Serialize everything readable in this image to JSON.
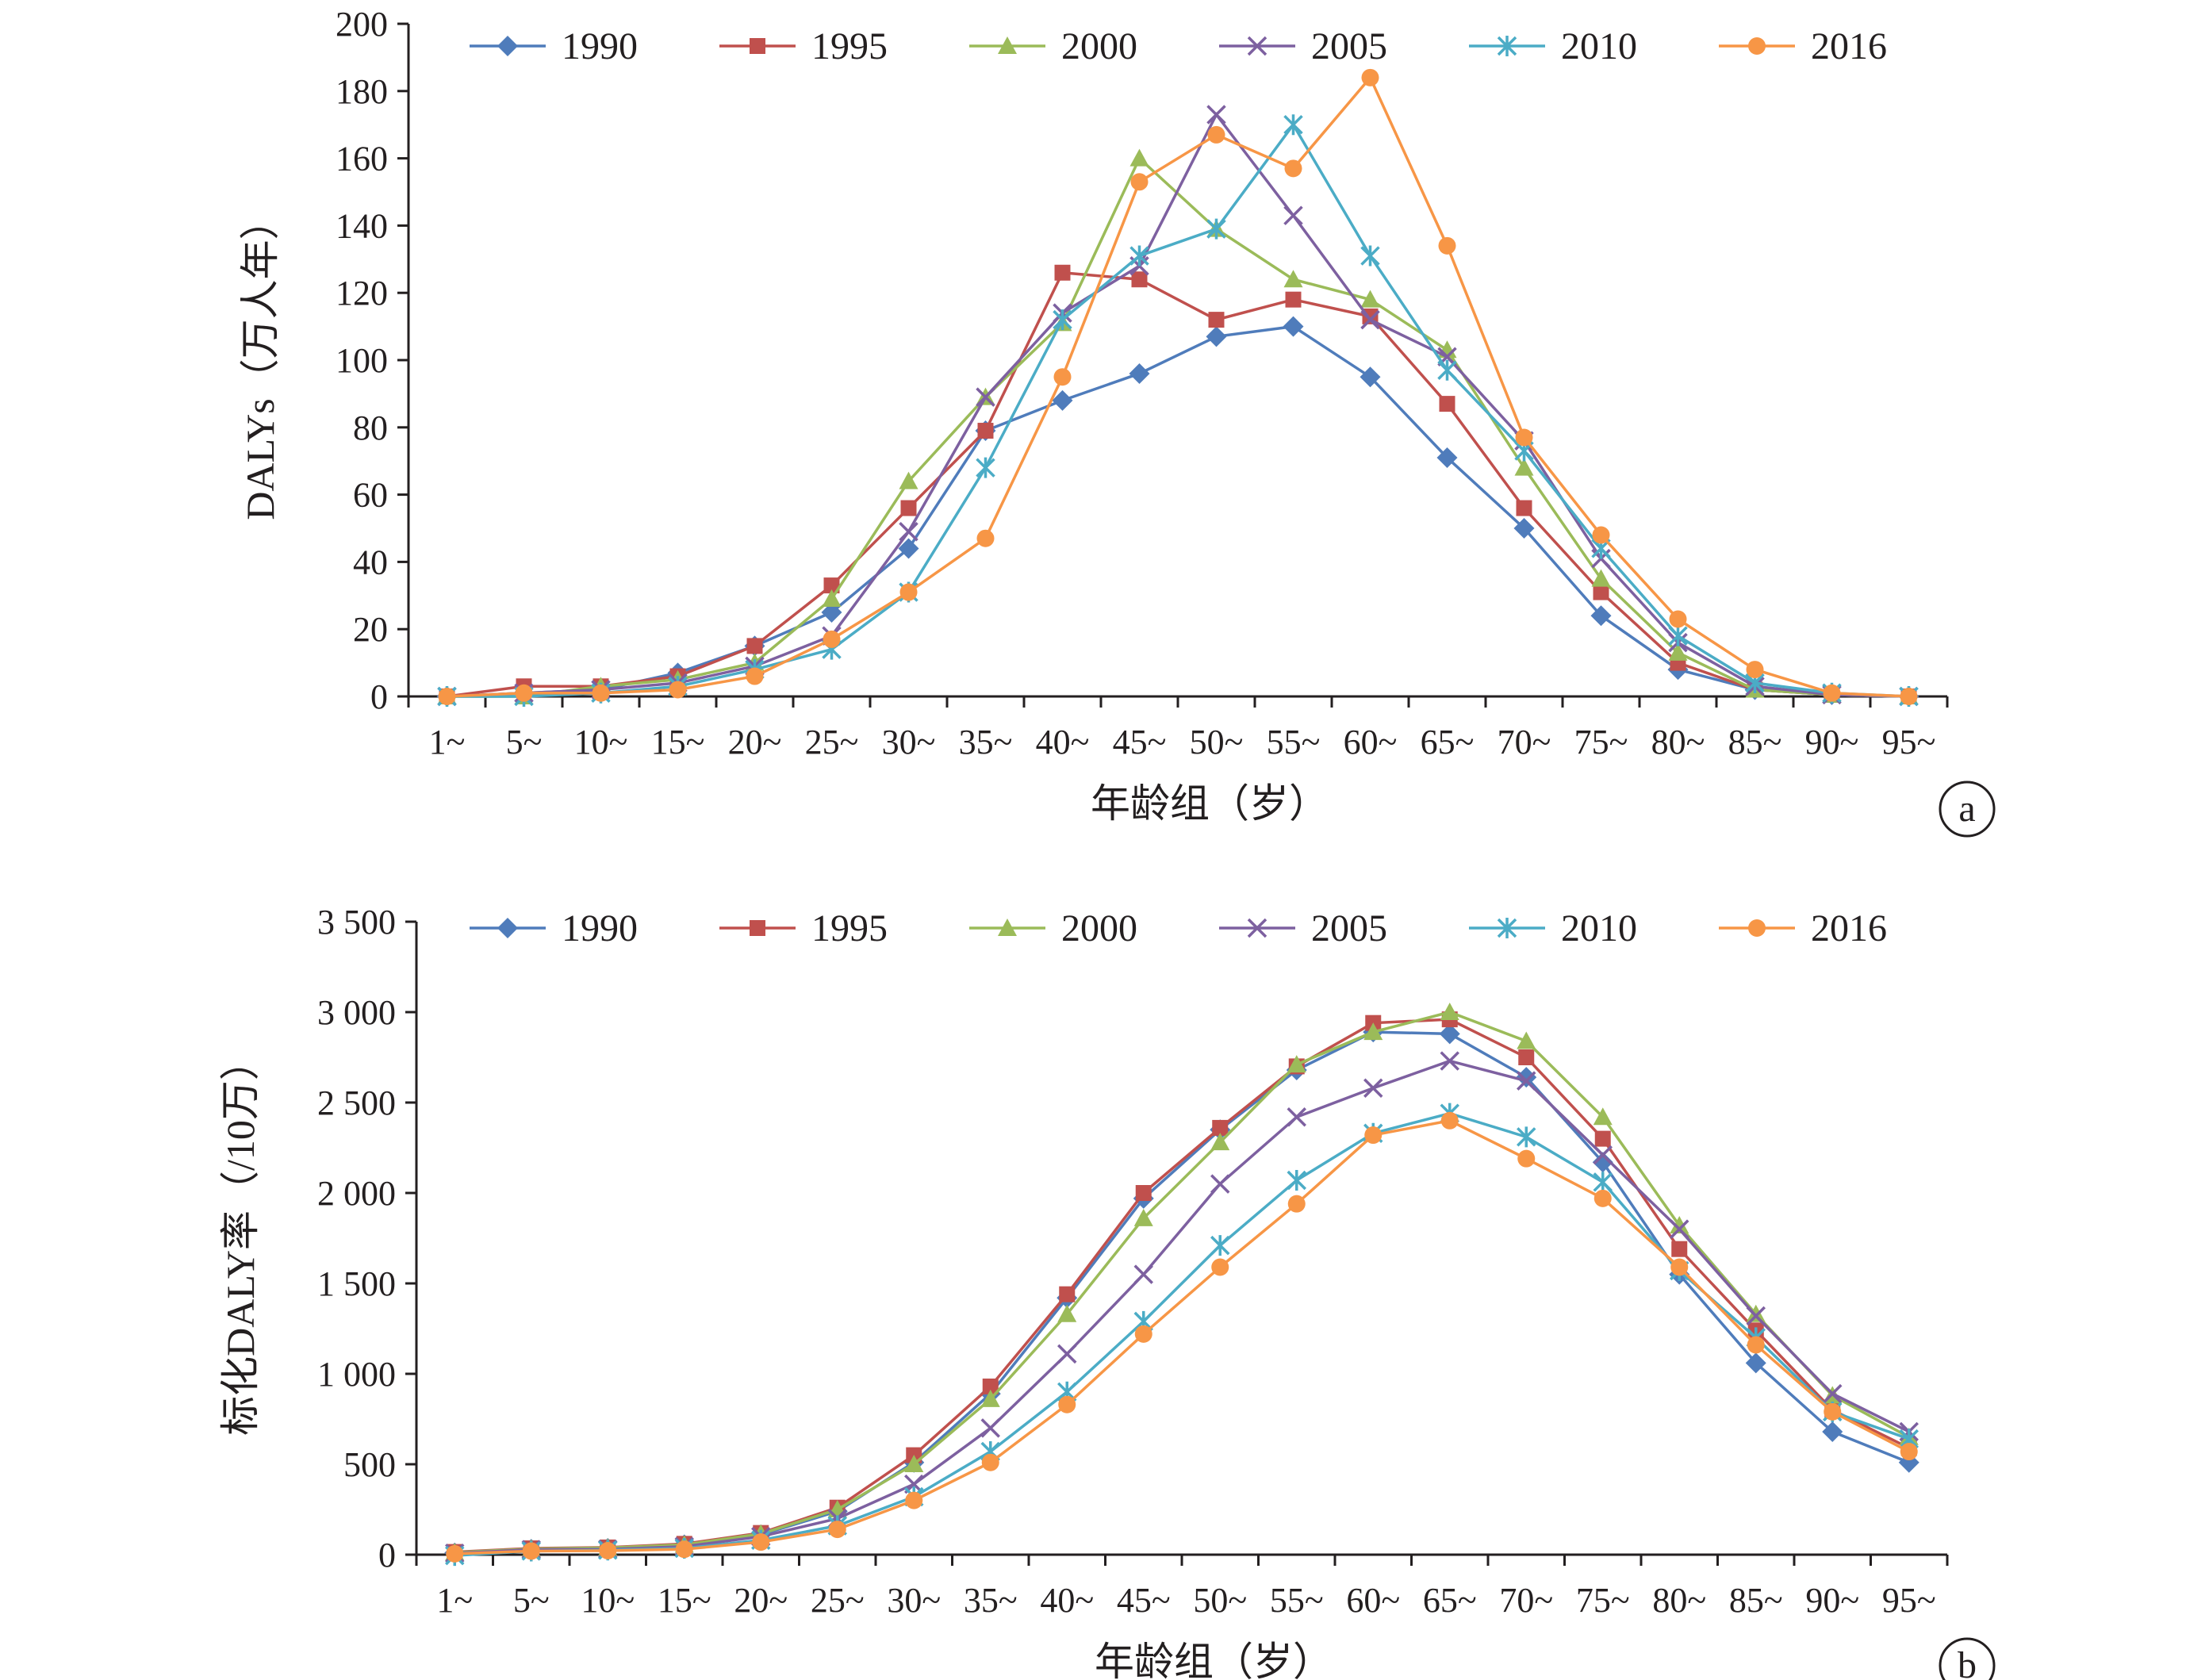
{
  "chart_data": [
    {
      "panel": "a",
      "type": "line",
      "title": "",
      "xlabel": "年龄组（岁）",
      "ylabel": "DALYs（万人年）",
      "ylim": [
        0,
        200
      ],
      "yticks": [
        0,
        20,
        40,
        60,
        80,
        100,
        120,
        140,
        160,
        180,
        200
      ],
      "ytick_labels": [
        "0",
        "20",
        "40",
        "60",
        "80",
        "100",
        "120",
        "140",
        "160",
        "180",
        "200"
      ],
      "categories": [
        "1~",
        "5~",
        "10~",
        "15~",
        "20~",
        "25~",
        "30~",
        "35~",
        "40~",
        "45~",
        "50~",
        "55~",
        "60~",
        "65~",
        "70~",
        "75~",
        "80~",
        "85~",
        "90~",
        "95~"
      ],
      "legend_position": "top",
      "grid": false,
      "series": [
        {
          "name": "1990",
          "marker": "diamond",
          "color": "#4f7cbb",
          "values": [
            0,
            1,
            2,
            7,
            15,
            25,
            44,
            79,
            88,
            96,
            107,
            110,
            95,
            71,
            50,
            24,
            8,
            2,
            0.5,
            0
          ]
        },
        {
          "name": "1995",
          "marker": "square",
          "color": "#c0504d",
          "values": [
            0,
            3,
            3,
            6,
            15,
            33,
            56,
            79,
            126,
            124,
            112,
            118,
            113,
            87,
            56,
            31,
            10,
            2,
            0.5,
            0
          ]
        },
        {
          "name": "2000",
          "marker": "triangle",
          "color": "#9bbb59",
          "values": [
            0,
            0,
            3,
            5,
            10,
            29,
            64,
            89,
            111,
            160,
            139,
            124,
            118,
            103,
            68,
            35,
            13,
            2,
            0.5,
            0
          ]
        },
        {
          "name": "2005",
          "marker": "x",
          "color": "#7d60a0",
          "values": [
            0,
            1,
            2,
            4,
            9,
            18,
            49,
            89,
            114,
            128,
            173,
            143,
            112,
            101,
            76,
            41,
            16,
            3,
            0.5,
            0
          ]
        },
        {
          "name": "2010",
          "marker": "star",
          "color": "#4bacc6",
          "values": [
            0,
            0,
            1,
            3,
            8,
            14,
            31,
            68,
            112,
            131,
            139,
            170,
            131,
            97,
            73,
            44,
            18,
            4,
            1,
            0
          ]
        },
        {
          "name": "2016",
          "marker": "circle",
          "color": "#f79646",
          "values": [
            0,
            1,
            1,
            2,
            6,
            17,
            31,
            47,
            95,
            153,
            167,
            157,
            184,
            134,
            77,
            48,
            23,
            8,
            1,
            0
          ]
        }
      ]
    },
    {
      "panel": "b",
      "type": "line",
      "title": "",
      "xlabel": "年龄组（岁）",
      "ylabel": "标化DALY率（/10万）",
      "ylim": [
        0,
        3500
      ],
      "yticks": [
        0,
        500,
        1000,
        1500,
        2000,
        2500,
        3000,
        3500
      ],
      "ytick_labels": [
        "0",
        "500",
        "1 000",
        "1 500",
        "2 000",
        "2 500",
        "3 000",
        "3 500"
      ],
      "categories": [
        "1~",
        "5~",
        "10~",
        "15~",
        "20~",
        "25~",
        "30~",
        "35~",
        "40~",
        "45~",
        "50~",
        "55~",
        "60~",
        "65~",
        "70~",
        "75~",
        "80~",
        "85~",
        "90~",
        "95~"
      ],
      "legend_position": "top",
      "grid": false,
      "series": [
        {
          "name": "1990",
          "marker": "diamond",
          "color": "#4f7cbb",
          "values": [
            10,
            30,
            35,
            55,
            110,
            240,
            510,
            890,
            1420,
            1970,
            2350,
            2680,
            2890,
            2880,
            2640,
            2170,
            1550,
            1060,
            680,
            510
          ]
        },
        {
          "name": "1995",
          "marker": "square",
          "color": "#c0504d",
          "values": [
            15,
            35,
            40,
            60,
            120,
            260,
            550,
            930,
            1440,
            2000,
            2360,
            2700,
            2940,
            2960,
            2750,
            2300,
            1690,
            1240,
            800,
            590
          ]
        },
        {
          "name": "2000",
          "marker": "triangle",
          "color": "#9bbb59",
          "values": [
            12,
            32,
            38,
            55,
            115,
            250,
            500,
            860,
            1330,
            1860,
            2280,
            2710,
            2890,
            3000,
            2840,
            2420,
            1820,
            1330,
            880,
            650
          ]
        },
        {
          "name": "2005",
          "marker": "x",
          "color": "#7d60a0",
          "values": [
            8,
            28,
            30,
            45,
            100,
            200,
            390,
            700,
            1110,
            1550,
            2050,
            2420,
            2580,
            2730,
            2620,
            2210,
            1800,
            1320,
            890,
            680
          ]
        },
        {
          "name": "2010",
          "marker": "star",
          "color": "#4bacc6",
          "values": [
            -5,
            20,
            25,
            35,
            80,
            160,
            320,
            570,
            900,
            1290,
            1710,
            2070,
            2330,
            2440,
            2310,
            2060,
            1570,
            1200,
            790,
            640
          ]
        },
        {
          "name": "2016",
          "marker": "circle",
          "color": "#f79646",
          "values": [
            5,
            20,
            22,
            30,
            70,
            140,
            300,
            510,
            830,
            1220,
            1590,
            1940,
            2320,
            2400,
            2190,
            1970,
            1590,
            1160,
            790,
            570
          ]
        }
      ]
    }
  ]
}
